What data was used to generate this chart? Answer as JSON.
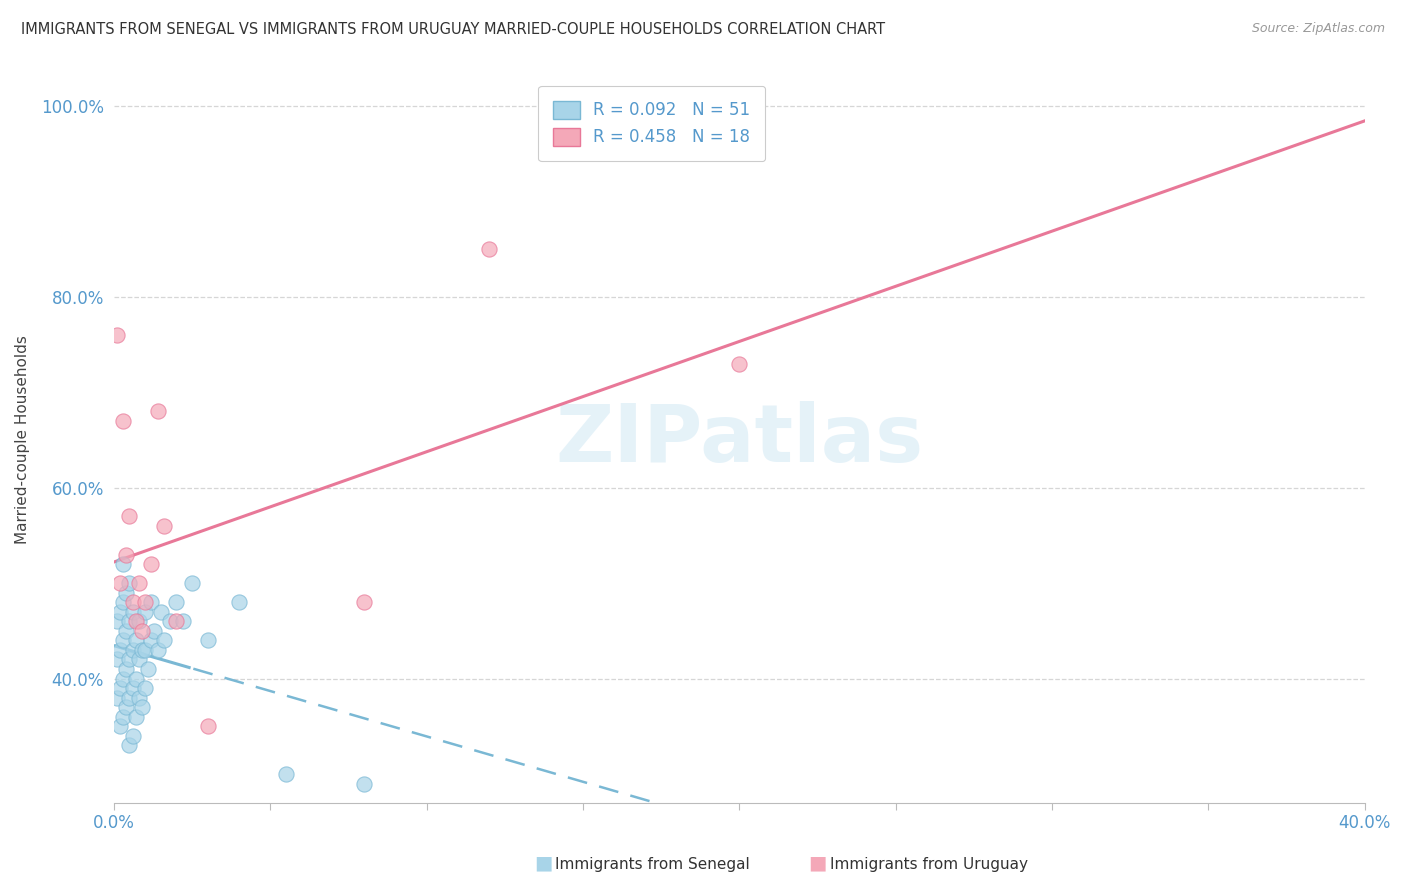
{
  "title": "IMMIGRANTS FROM SENEGAL VS IMMIGRANTS FROM URUGUAY MARRIED-COUPLE HOUSEHOLDS CORRELATION CHART",
  "source": "Source: ZipAtlas.com",
  "ylabel": "Married-couple Households",
  "xlim": [
    0.0,
    0.4
  ],
  "ylim": [
    0.27,
    1.03
  ],
  "xtick_vals": [
    0.0,
    0.05,
    0.1,
    0.15,
    0.2,
    0.25,
    0.3,
    0.35,
    0.4
  ],
  "xtick_labels": [
    "0.0%",
    "",
    "",
    "",
    "",
    "",
    "",
    "",
    "40.0%"
  ],
  "ytick_vals": [
    0.4,
    0.6,
    0.8,
    1.0
  ],
  "ytick_labels": [
    "40.0%",
    "60.0%",
    "80.0%",
    "100.0%"
  ],
  "R_senegal": 0.092,
  "N_senegal": 51,
  "R_uruguay": 0.458,
  "N_uruguay": 18,
  "color_senegal": "#a8d4e8",
  "color_uruguay": "#f4a8b8",
  "color_senegal_line": "#7ab8d4",
  "color_uruguay_line": "#e87898",
  "watermark": "ZIPatlas",
  "senegal_x": [
    0.001,
    0.001,
    0.001,
    0.002,
    0.002,
    0.002,
    0.002,
    0.003,
    0.003,
    0.003,
    0.003,
    0.003,
    0.004,
    0.004,
    0.004,
    0.004,
    0.005,
    0.005,
    0.005,
    0.005,
    0.005,
    0.006,
    0.006,
    0.006,
    0.006,
    0.007,
    0.007,
    0.007,
    0.008,
    0.008,
    0.008,
    0.009,
    0.009,
    0.01,
    0.01,
    0.01,
    0.011,
    0.012,
    0.012,
    0.013,
    0.014,
    0.015,
    0.016,
    0.018,
    0.02,
    0.022,
    0.025,
    0.03,
    0.04,
    0.055,
    0.08
  ],
  "senegal_y": [
    0.38,
    0.42,
    0.46,
    0.35,
    0.39,
    0.43,
    0.47,
    0.36,
    0.4,
    0.44,
    0.48,
    0.52,
    0.37,
    0.41,
    0.45,
    0.49,
    0.33,
    0.38,
    0.42,
    0.46,
    0.5,
    0.34,
    0.39,
    0.43,
    0.47,
    0.36,
    0.4,
    0.44,
    0.38,
    0.42,
    0.46,
    0.37,
    0.43,
    0.39,
    0.43,
    0.47,
    0.41,
    0.44,
    0.48,
    0.45,
    0.43,
    0.47,
    0.44,
    0.46,
    0.48,
    0.46,
    0.5,
    0.44,
    0.48,
    0.3,
    0.29
  ],
  "uruguay_x": [
    0.001,
    0.002,
    0.003,
    0.004,
    0.005,
    0.006,
    0.007,
    0.008,
    0.009,
    0.01,
    0.012,
    0.014,
    0.016,
    0.02,
    0.03,
    0.08,
    0.12,
    0.2
  ],
  "uruguay_y": [
    0.76,
    0.5,
    0.67,
    0.53,
    0.57,
    0.48,
    0.46,
    0.5,
    0.45,
    0.48,
    0.52,
    0.68,
    0.56,
    0.46,
    0.35,
    0.48,
    0.85,
    0.73
  ]
}
